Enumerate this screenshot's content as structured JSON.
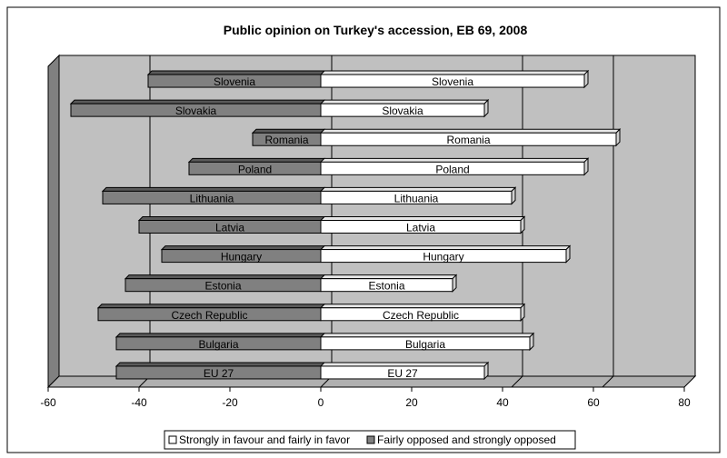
{
  "chart_data": {
    "type": "bar",
    "orientation": "horizontal",
    "title": "Public opinion on Turkey's accession, EB 69, 2008",
    "categories": [
      "EU 27",
      "Bulgaria",
      "Czech Republic",
      "Estonia",
      "Hungary",
      "Latvia",
      "Lithuania",
      "Poland",
      "Romania",
      "Slovakia",
      "Slovenia"
    ],
    "series": [
      {
        "name": "Strongly in favour and fairly in favor",
        "color": "#ffffff",
        "values": [
          36,
          46,
          44,
          29,
          54,
          44,
          42,
          58,
          65,
          36,
          58
        ]
      },
      {
        "name": "Fairly opposed and strongly opposed",
        "color": "#808080",
        "values": [
          -45,
          -45,
          -49,
          -43,
          -35,
          -40,
          -48,
          -29,
          -15,
          -55,
          -38
        ]
      }
    ],
    "xlim": [
      -60,
      80
    ],
    "xticks": [
      -60,
      -40,
      -20,
      0,
      20,
      40,
      60,
      80
    ],
    "gridlines": [
      -40,
      0,
      42,
      62
    ],
    "grid": true,
    "legend_position": "bottom",
    "plot_background": "#c0c0c0"
  }
}
